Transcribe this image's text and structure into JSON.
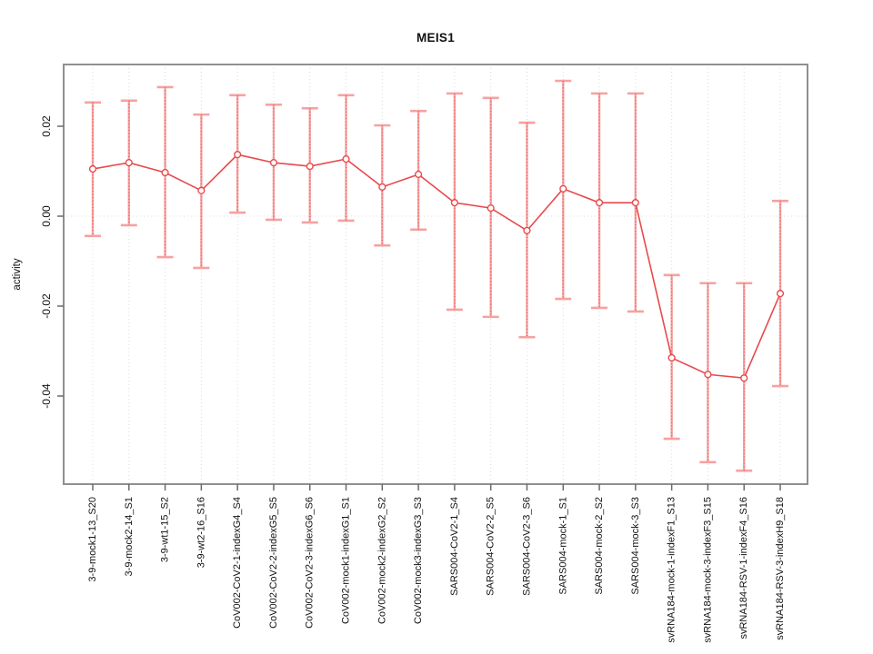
{
  "title": "MEIS1",
  "colors": {
    "line": "#e8494c",
    "bar": "#f5a2a0",
    "grid": "#dcdcdc",
    "box": "#8f8f8f",
    "tick": "#6b6b6b",
    "text": "#111111",
    "marker_fill": "#ffffff"
  },
  "chart_data": {
    "type": "line",
    "subtype": "point-estimates-with-error-bars",
    "title": "MEIS1",
    "xlabel": "",
    "ylabel": "activity",
    "legend": "none",
    "grid": "vertical dotted line at each category; horizontal dotted line at y=0 only",
    "ylim": [
      -0.0596,
      0.0337
    ],
    "y_ticks": [
      "0.02",
      "0.00",
      "-0.02",
      "-0.04"
    ],
    "y_tick_values": [
      0.02,
      0.0,
      -0.02,
      -0.04
    ],
    "categories": [
      "3-9-mock1-13_S20",
      "3-9-mock2-14_S1",
      "3-9-wt1-15_S2",
      "3-9-wt2-16_S16",
      "CoV002-CoV2-1-indexG4_S4",
      "CoV002-CoV2-2-indexG5_S5",
      "CoV002-CoV2-3-indexG6_S6",
      "CoV002-mock1-indexG1_S1",
      "CoV002-mock2-indexG2_S2",
      "CoV002-mock3-indexG3_S3",
      "SARS004-CoV2-1_S4",
      "SARS004-CoV2-2_S5",
      "SARS004-CoV2-3_S6",
      "SARS004-mock-1_S1",
      "SARS004-mock-2_S2",
      "SARS004-mock-3_S3",
      "svRNA184-mock-1-indexF1_S13",
      "svRNA184-mock-3-indexF3_S15",
      "svRNA184-RSV-1-indexF4_S16",
      "svRNA184-RSV-3-indexH9_S18"
    ],
    "series": [
      {
        "name": "activity",
        "values": [
          0.0105,
          0.0119,
          0.0097,
          0.0057,
          0.0137,
          0.0119,
          0.0111,
          0.0127,
          0.0065,
          0.0093,
          0.003,
          0.0018,
          -0.0032,
          0.0061,
          0.003,
          0.003,
          -0.0315,
          -0.0352,
          -0.036,
          -0.0172
        ],
        "lower": [
          -0.0044,
          -0.002,
          -0.0091,
          -0.0115,
          0.0008,
          -0.0008,
          -0.0014,
          -0.001,
          -0.0065,
          -0.003,
          -0.0208,
          -0.0224,
          -0.0269,
          -0.0184,
          -0.0204,
          -0.0212,
          -0.0495,
          -0.0547,
          -0.0566,
          -0.0378
        ],
        "upper": [
          0.0253,
          0.0257,
          0.0287,
          0.0226,
          0.0269,
          0.0248,
          0.024,
          0.0269,
          0.0202,
          0.0234,
          0.0273,
          0.0263,
          0.0208,
          0.0301,
          0.0273,
          0.0273,
          -0.0131,
          -0.0149,
          -0.0149,
          0.0034
        ]
      }
    ]
  }
}
